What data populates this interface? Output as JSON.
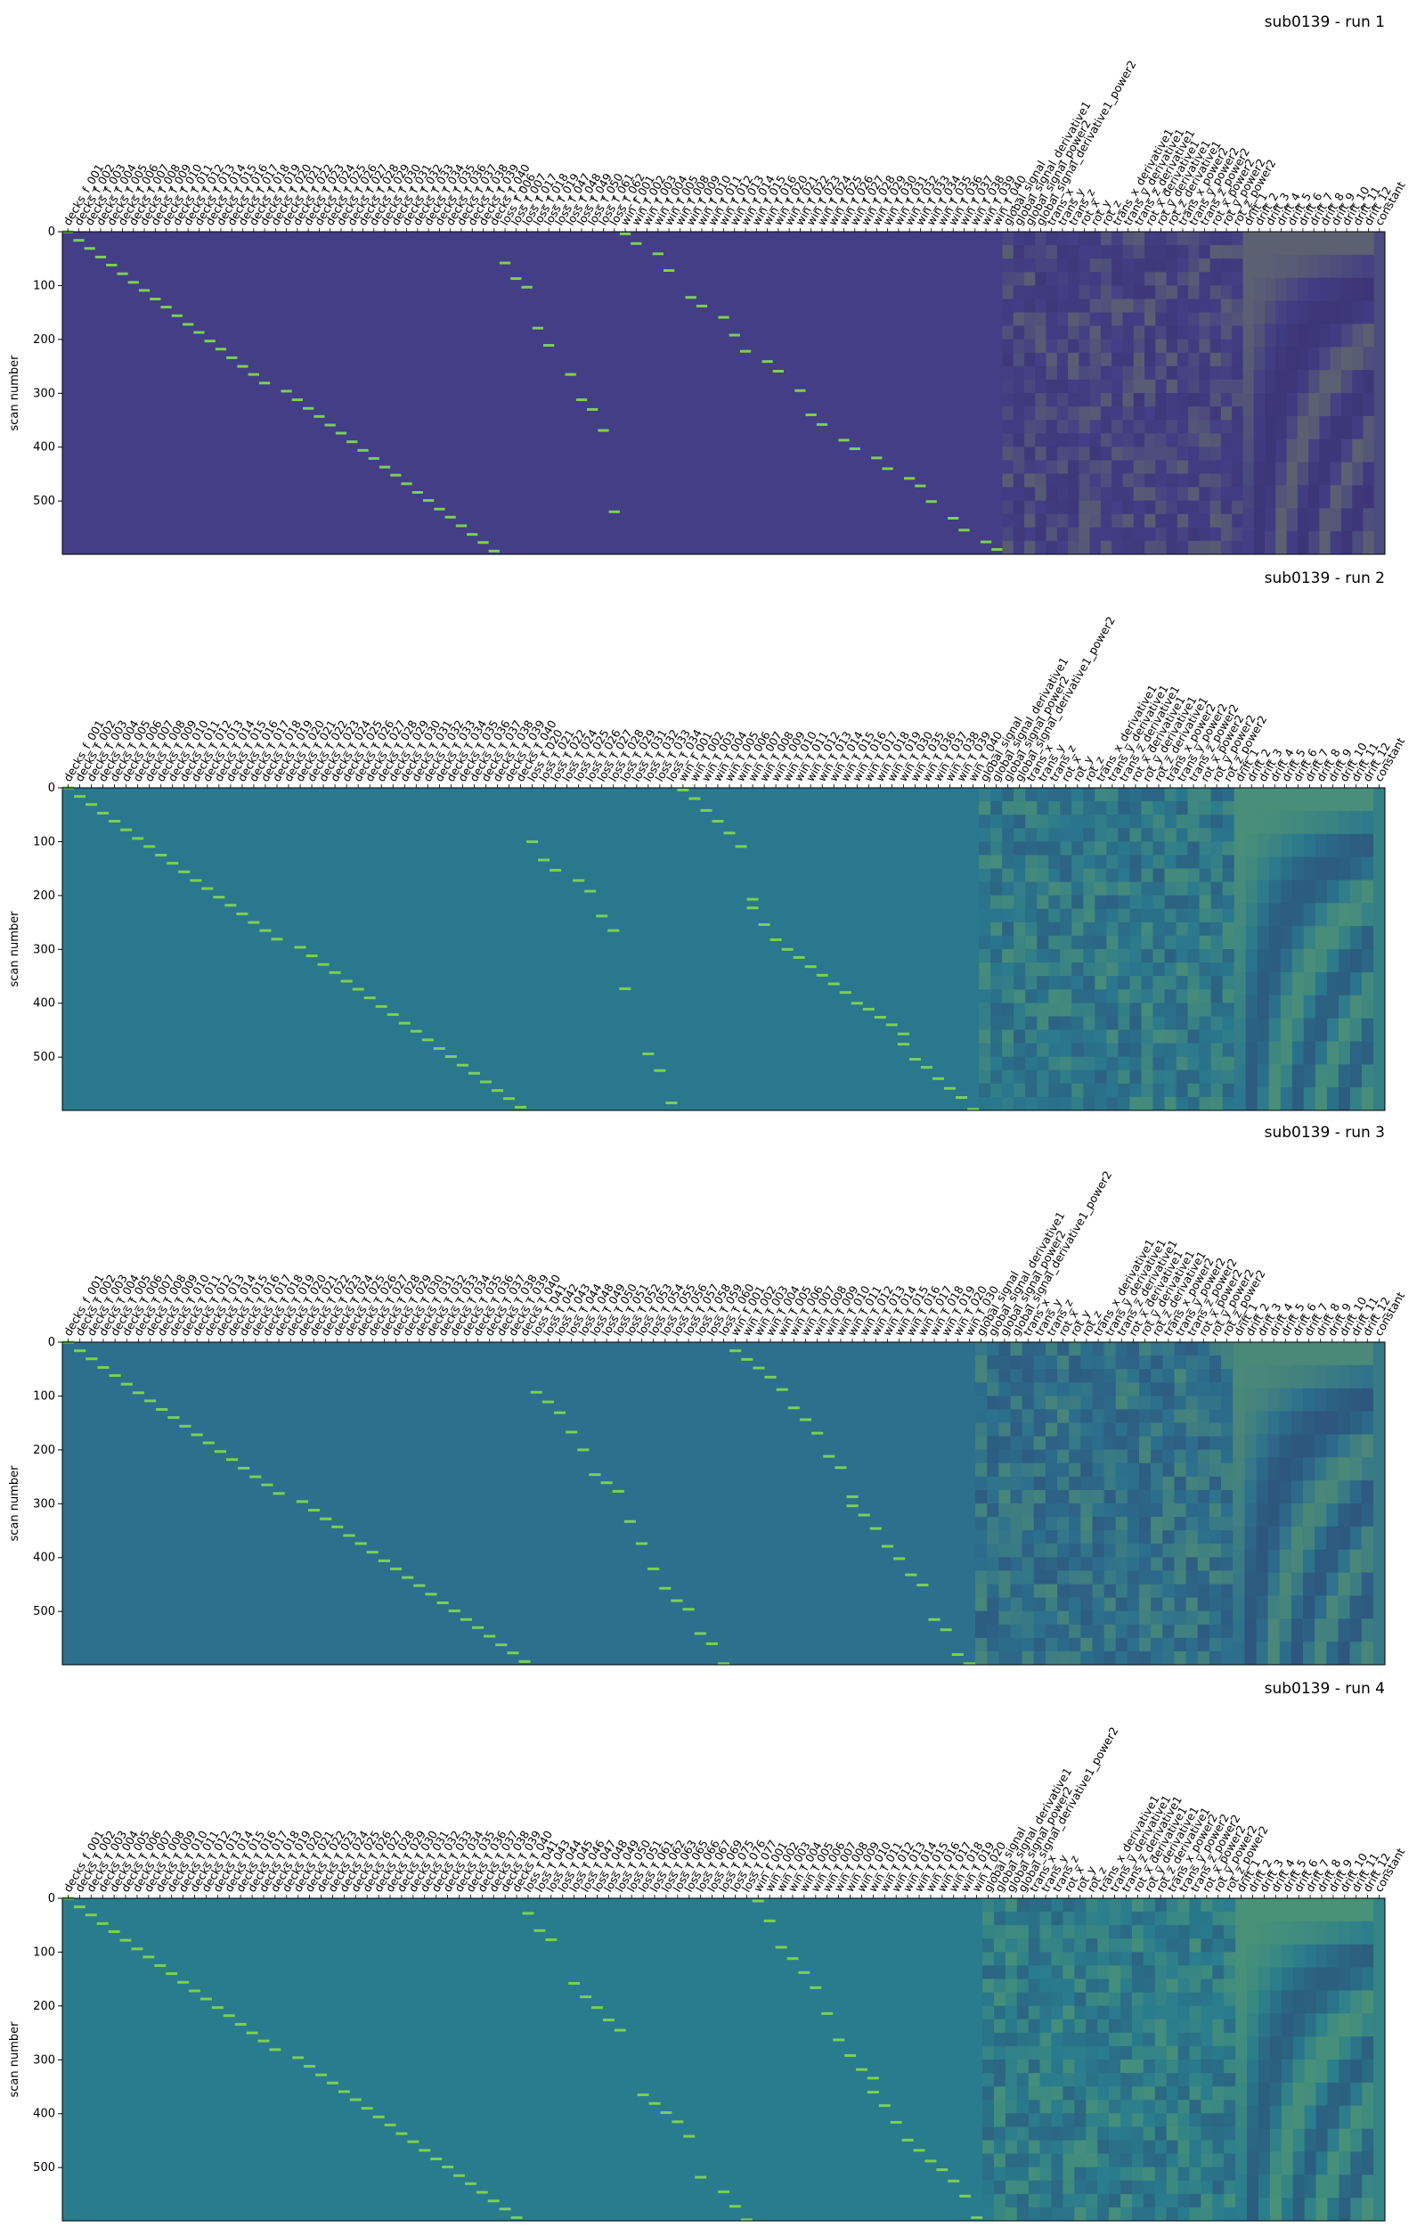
{
  "figure": {
    "palette": {
      "run1_bg": "#433e85",
      "run2_bg": "#2a788e",
      "run3_bg": "#2c708e",
      "run4_bg": "#297c8e",
      "event": "#7ad151",
      "hot": "#b5de2b",
      "dark": "#30275f",
      "text": "#000000"
    }
  },
  "chart_data": [
    {
      "type": "heatmap",
      "title": "sub0139 - run 1",
      "ylabel": "scan number",
      "yticks": [
        "0",
        "100",
        "200",
        "300",
        "400",
        "500"
      ],
      "ylim": [
        0,
        599
      ],
      "events": {
        "decks_rows": [
          0,
          16,
          31,
          47,
          62,
          78,
          94,
          109,
          125,
          140,
          156,
          172,
          187,
          203,
          218,
          234,
          250,
          265,
          281,
          296,
          312,
          328,
          343,
          359,
          374,
          390,
          406,
          421,
          437,
          452,
          468,
          484,
          499,
          515,
          530,
          546,
          562,
          577,
          593
        ],
        "loss_rows": [
          58,
          87,
          103,
          179,
          211,
          265,
          312,
          330,
          369,
          520
        ],
        "win_rows": [
          4,
          22,
          41,
          72,
          122,
          138,
          159,
          192,
          222,
          241,
          259,
          295,
          340,
          358,
          387,
          403,
          420,
          440,
          458,
          472,
          501,
          532,
          554,
          576,
          590
        ]
      },
      "columns": [
        "decks_f_001",
        "decks_f_002",
        "decks_f_003",
        "decks_f_004",
        "decks_f_005",
        "decks_f_006",
        "decks_f_007",
        "decks_f_008",
        "decks_f_009",
        "decks_f_010",
        "decks_f_011",
        "decks_f_012",
        "decks_f_013",
        "decks_f_014",
        "decks_f_015",
        "decks_f_016",
        "decks_f_017",
        "decks_f_018",
        "decks_f_019",
        "decks_f_020",
        "decks_f_021",
        "decks_f_022",
        "decks_f_023",
        "decks_f_024",
        "decks_f_025",
        "decks_f_026",
        "decks_f_027",
        "decks_f_028",
        "decks_f_029",
        "decks_f_030",
        "decks_f_031",
        "decks_f_032",
        "decks_f_033",
        "decks_f_034",
        "decks_f_035",
        "decks_f_036",
        "decks_f_037",
        "decks_f_038",
        "decks_f_039",
        "decks_f_040",
        "loss_f_006",
        "loss_f_007",
        "loss_f_017",
        "loss_f_018",
        "loss_f_019",
        "loss_f_047",
        "loss_f_048",
        "loss_f_049",
        "loss_f_050",
        "loss_f_061",
        "loss_f_062",
        "win_f_001",
        "win_f_002",
        "win_f_003",
        "win_f_004",
        "win_f_005",
        "win_f_008",
        "win_f_009",
        "win_f_010",
        "win_f_011",
        "win_f_012",
        "win_f_013",
        "win_f_014",
        "win_f_015",
        "win_f_016",
        "win_f_020",
        "win_f_021",
        "win_f_022",
        "win_f_023",
        "win_f_024",
        "win_f_025",
        "win_f_026",
        "win_f_027",
        "win_f_028",
        "win_f_029",
        "win_f_030",
        "win_f_031",
        "win_f_032",
        "win_f_033",
        "win_f_034",
        "win_f_035",
        "win_f_036",
        "win_f_037",
        "win_f_038",
        "win_f_039",
        "win_f_040",
        "global_signal",
        "global_signal_derivative1",
        "global_signal_power2",
        "global_signal_derivative1_power2",
        "trans_x",
        "trans_y",
        "trans_z",
        "rot_x",
        "rot_y",
        "rot_z",
        "trans_x_derivative1",
        "trans_y_derivative1",
        "trans_z_derivative1",
        "rot_x_derivative1",
        "rot_y_derivative1",
        "rot_z_derivative1",
        "trans_x_power2",
        "trans_y_power2",
        "trans_z_power2",
        "rot_x_power2",
        "rot_y_power2",
        "rot_z_power2",
        "drift_1",
        "drift_2",
        "drift_3",
        "drift_4",
        "drift_5",
        "drift_6",
        "drift_7",
        "drift_8",
        "drift_9",
        "drift_10",
        "drift_11",
        "drift_12",
        "constant"
      ]
    },
    {
      "type": "heatmap",
      "title": "sub0139 - run 2",
      "ylabel": "scan number",
      "yticks": [
        "0",
        "100",
        "200",
        "300",
        "400",
        "500"
      ],
      "ylim": [
        0,
        599
      ],
      "events": {
        "decks_rows": [
          0,
          16,
          31,
          47,
          62,
          78,
          94,
          109,
          125,
          140,
          156,
          172,
          187,
          203,
          218,
          234,
          250,
          265,
          281,
          296,
          312,
          328,
          343,
          359,
          374,
          390,
          406,
          421,
          437,
          452,
          468,
          484,
          499,
          515,
          530,
          546,
          562,
          577,
          593
        ],
        "loss_rows": [
          100,
          134,
          153,
          172,
          192,
          238,
          265,
          373,
          494,
          525,
          585
        ],
        "win_rows": [
          4,
          20,
          42,
          62,
          84,
          109,
          207,
          223,
          254,
          282,
          300,
          315,
          332,
          348,
          364,
          380,
          400,
          411,
          426,
          440,
          457,
          476,
          504,
          519,
          540,
          558,
          575,
          597
        ]
      },
      "columns": [
        "decks_f_001",
        "decks_f_002",
        "decks_f_003",
        "decks_f_004",
        "decks_f_005",
        "decks_f_006",
        "decks_f_007",
        "decks_f_008",
        "decks_f_009",
        "decks_f_010",
        "decks_f_011",
        "decks_f_012",
        "decks_f_013",
        "decks_f_014",
        "decks_f_015",
        "decks_f_016",
        "decks_f_017",
        "decks_f_018",
        "decks_f_019",
        "decks_f_020",
        "decks_f_021",
        "decks_f_022",
        "decks_f_023",
        "decks_f_024",
        "decks_f_025",
        "decks_f_026",
        "decks_f_027",
        "decks_f_028",
        "decks_f_029",
        "decks_f_030",
        "decks_f_031",
        "decks_f_032",
        "decks_f_033",
        "decks_f_034",
        "decks_f_035",
        "decks_f_036",
        "decks_f_037",
        "decks_f_038",
        "decks_f_039",
        "decks_f_040",
        "loss_f_020",
        "loss_f_021",
        "loss_f_022",
        "loss_f_024",
        "loss_f_025",
        "loss_f_026",
        "loss_f_027",
        "loss_f_028",
        "loss_f_029",
        "loss_f_031",
        "loss_f_032",
        "loss_f_033",
        "loss_f_034",
        "win_f_001",
        "win_f_002",
        "win_f_003",
        "win_f_004",
        "win_f_005",
        "win_f_006",
        "win_f_007",
        "win_f_008",
        "win_f_009",
        "win_f_010",
        "win_f_011",
        "win_f_012",
        "win_f_013",
        "win_f_014",
        "win_f_015",
        "win_f_016",
        "win_f_017",
        "win_f_018",
        "win_f_019",
        "win_f_030",
        "win_f_035",
        "win_f_036",
        "win_f_037",
        "win_f_038",
        "win_f_039",
        "win_f_040",
        "global_signal",
        "global_signal_derivative1",
        "global_signal_power2",
        "global_signal_derivative1_power2",
        "trans_x",
        "trans_y",
        "trans_z",
        "rot_x",
        "rot_y",
        "rot_z",
        "trans_x_derivative1",
        "trans_y_derivative1",
        "trans_z_derivative1",
        "rot_x_derivative1",
        "rot_y_derivative1",
        "rot_z_derivative1",
        "trans_x_power2",
        "trans_y_power2",
        "trans_z_power2",
        "rot_x_power2",
        "rot_y_power2",
        "rot_z_power2",
        "drift_1",
        "drift_2",
        "drift_3",
        "drift_4",
        "drift_5",
        "drift_6",
        "drift_7",
        "drift_8",
        "drift_9",
        "drift_10",
        "drift_11",
        "drift_12",
        "constant"
      ]
    },
    {
      "type": "heatmap",
      "title": "sub0139 - run 3",
      "ylabel": "scan number",
      "yticks": [
        "0",
        "100",
        "200",
        "300",
        "400",
        "500"
      ],
      "ylim": [
        0,
        599
      ],
      "events": {
        "decks_rows": [
          0,
          16,
          31,
          47,
          62,
          78,
          94,
          109,
          125,
          140,
          156,
          172,
          187,
          203,
          218,
          234,
          250,
          265,
          281,
          296,
          312,
          328,
          343,
          359,
          374,
          390,
          406,
          421,
          437,
          452,
          468,
          484,
          499,
          515,
          530,
          546,
          562,
          577,
          593
        ],
        "loss_rows": [
          93,
          111,
          131,
          167,
          200,
          246,
          261,
          277,
          333,
          374,
          421,
          457,
          480,
          496,
          541,
          560,
          597
        ],
        "win_rows": [
          16,
          32,
          48,
          65,
          88,
          122,
          144,
          169,
          212,
          233,
          287,
          304,
          321,
          346,
          379,
          402,
          432,
          451,
          515,
          534,
          580,
          597
        ]
      },
      "columns": [
        "decks_f_001",
        "decks_f_002",
        "decks_f_003",
        "decks_f_004",
        "decks_f_005",
        "decks_f_006",
        "decks_f_007",
        "decks_f_008",
        "decks_f_009",
        "decks_f_010",
        "decks_f_011",
        "decks_f_012",
        "decks_f_013",
        "decks_f_014",
        "decks_f_015",
        "decks_f_016",
        "decks_f_017",
        "decks_f_018",
        "decks_f_019",
        "decks_f_020",
        "decks_f_021",
        "decks_f_022",
        "decks_f_023",
        "decks_f_024",
        "decks_f_025",
        "decks_f_026",
        "decks_f_027",
        "decks_f_028",
        "decks_f_029",
        "decks_f_030",
        "decks_f_031",
        "decks_f_032",
        "decks_f_033",
        "decks_f_034",
        "decks_f_035",
        "decks_f_036",
        "decks_f_037",
        "decks_f_038",
        "decks_f_039",
        "decks_f_040",
        "loss_f_041",
        "loss_f_042",
        "loss_f_043",
        "loss_f_044",
        "loss_f_048",
        "loss_f_049",
        "loss_f_050",
        "loss_f_051",
        "loss_f_052",
        "loss_f_053",
        "loss_f_054",
        "loss_f_055",
        "loss_f_056",
        "loss_f_057",
        "loss_f_058",
        "loss_f_059",
        "loss_f_060",
        "win_f_001",
        "win_f_002",
        "win_f_003",
        "win_f_004",
        "win_f_005",
        "win_f_006",
        "win_f_007",
        "win_f_008",
        "win_f_009",
        "win_f_010",
        "win_f_011",
        "win_f_012",
        "win_f_013",
        "win_f_014",
        "win_f_015",
        "win_f_016",
        "win_f_017",
        "win_f_018",
        "win_f_019",
        "win_f_020",
        "win_f_030",
        "global_signal",
        "global_signal_derivative1",
        "global_signal_power2",
        "global_signal_derivative1_power2",
        "trans_x",
        "trans_y",
        "trans_z",
        "rot_x",
        "rot_y",
        "rot_z",
        "trans_x_derivative1",
        "trans_y_derivative1",
        "trans_z_derivative1",
        "rot_x_derivative1",
        "rot_y_derivative1",
        "rot_z_derivative1",
        "trans_x_power2",
        "trans_y_power2",
        "trans_z_power2",
        "rot_x_power2",
        "rot_y_power2",
        "rot_z_power2",
        "drift_1",
        "drift_2",
        "drift_3",
        "drift_4",
        "drift_5",
        "drift_6",
        "drift_7",
        "drift_8",
        "drift_9",
        "drift_10",
        "drift_11",
        "drift_12",
        "constant"
      ]
    },
    {
      "type": "heatmap",
      "title": "sub0139 - run 4",
      "ylabel": "scan number",
      "yticks": [
        "0",
        "100",
        "200",
        "300",
        "400",
        "500"
      ],
      "ylim": [
        0,
        599
      ],
      "events": {
        "decks_rows": [
          0,
          16,
          31,
          47,
          62,
          78,
          94,
          109,
          125,
          140,
          156,
          172,
          187,
          203,
          218,
          234,
          250,
          265,
          281,
          296,
          312,
          328,
          343,
          359,
          374,
          390,
          406,
          421,
          437,
          452,
          468,
          484,
          499,
          515,
          530,
          546,
          562,
          577,
          593
        ],
        "loss_rows": [
          28,
          60,
          77,
          158,
          183,
          203,
          226,
          245,
          365,
          381,
          398,
          415,
          442,
          518,
          545,
          572,
          597
        ],
        "win_rows": [
          5,
          42,
          91,
          112,
          138,
          166,
          214,
          263,
          292,
          318,
          334,
          360,
          385,
          416,
          449,
          468,
          488,
          504,
          525,
          553,
          593
        ]
      },
      "columns": [
        "decks_f_001",
        "decks_f_002",
        "decks_f_003",
        "decks_f_004",
        "decks_f_005",
        "decks_f_006",
        "decks_f_007",
        "decks_f_008",
        "decks_f_009",
        "decks_f_010",
        "decks_f_011",
        "decks_f_012",
        "decks_f_013",
        "decks_f_014",
        "decks_f_015",
        "decks_f_016",
        "decks_f_017",
        "decks_f_018",
        "decks_f_019",
        "decks_f_020",
        "decks_f_021",
        "decks_f_022",
        "decks_f_023",
        "decks_f_024",
        "decks_f_025",
        "decks_f_026",
        "decks_f_027",
        "decks_f_028",
        "decks_f_029",
        "decks_f_030",
        "decks_f_031",
        "decks_f_032",
        "decks_f_033",
        "decks_f_034",
        "decks_f_035",
        "decks_f_036",
        "decks_f_037",
        "decks_f_038",
        "decks_f_039",
        "decks_f_040",
        "loss_f_041",
        "loss_f_043",
        "loss_f_044",
        "loss_f_045",
        "loss_f_046",
        "loss_f_047",
        "loss_f_048",
        "loss_f_049",
        "loss_f_050",
        "loss_f_051",
        "loss_f_061",
        "loss_f_062",
        "loss_f_063",
        "loss_f_065",
        "loss_f_066",
        "loss_f_067",
        "loss_f_069",
        "loss_f_075",
        "loss_f_076",
        "loss_f_077",
        "win_f_001",
        "win_f_002",
        "win_f_003",
        "win_f_004",
        "win_f_005",
        "win_f_006",
        "win_f_007",
        "win_f_008",
        "win_f_009",
        "win_f_010",
        "win_f_011",
        "win_f_012",
        "win_f_013",
        "win_f_014",
        "win_f_015",
        "win_f_016",
        "win_f_017",
        "win_f_018",
        "win_f_019",
        "win_f_020",
        "global_signal",
        "global_signal_derivative1",
        "global_signal_power2",
        "global_signal_derivative1_power2",
        "trans_x",
        "trans_y",
        "trans_z",
        "rot_x",
        "rot_y",
        "rot_z",
        "trans_x_derivative1",
        "trans_y_derivative1",
        "trans_z_derivative1",
        "rot_x_derivative1",
        "rot_y_derivative1",
        "rot_z_derivative1",
        "trans_x_power2",
        "trans_y_power2",
        "trans_z_power2",
        "rot_x_power2",
        "rot_y_power2",
        "rot_z_power2",
        "drift_1",
        "drift_2",
        "drift_3",
        "drift_4",
        "drift_5",
        "drift_6",
        "drift_7",
        "drift_8",
        "drift_9",
        "drift_10",
        "drift_11",
        "drift_12",
        "constant"
      ]
    }
  ]
}
